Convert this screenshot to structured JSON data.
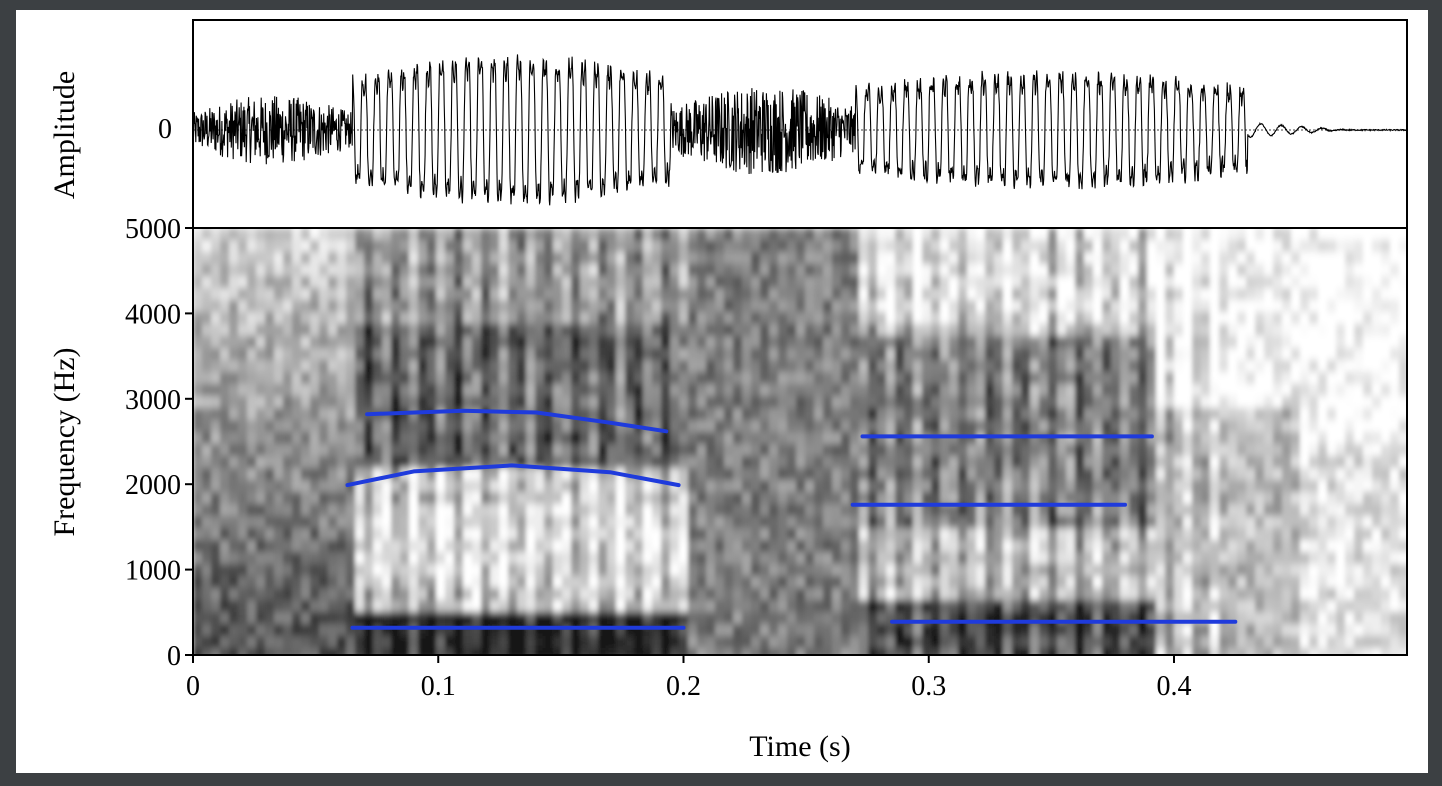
{
  "chart_data": [
    {
      "type": "line",
      "panel": "waveform",
      "ylabel": "Amplitude",
      "xlim": [
        0,
        0.495
      ],
      "y_ticks": [
        "0"
      ],
      "zero_line": true,
      "segments": [
        {
          "t0": 0.0,
          "t1": 0.065,
          "kind": "noise",
          "level": 0.35
        },
        {
          "t0": 0.065,
          "t1": 0.195,
          "kind": "voiced",
          "level": 0.9
        },
        {
          "t0": 0.195,
          "t1": 0.27,
          "kind": "noise",
          "level": 0.45
        },
        {
          "t0": 0.27,
          "t1": 0.43,
          "kind": "voiced",
          "level": 0.7
        },
        {
          "t0": 0.43,
          "t1": 0.495,
          "kind": "decay",
          "level": 0.12
        }
      ]
    },
    {
      "type": "heatmap",
      "panel": "spectrogram",
      "xlabel": "Time (s)",
      "ylabel": "Frequency (Hz)",
      "xlim": [
        0,
        0.495
      ],
      "ylim": [
        0,
        5000
      ],
      "x_ticks": [
        "0",
        "0.1",
        "0.2",
        "0.3",
        "0.4"
      ],
      "y_ticks": [
        "0",
        "1000",
        "2000",
        "3000",
        "4000",
        "5000"
      ],
      "colormap": "grayscale",
      "formant_color": "#1f3bdc",
      "formant_tracks": [
        {
          "x": [
            0.071,
            0.11,
            0.14,
            0.17,
            0.193
          ],
          "y": [
            2820,
            2860,
            2840,
            2720,
            2620
          ]
        },
        {
          "x": [
            0.063,
            0.09,
            0.13,
            0.17,
            0.198
          ],
          "y": [
            1990,
            2150,
            2220,
            2140,
            1990
          ]
        },
        {
          "x": [
            0.065,
            0.2
          ],
          "y": [
            320,
            320
          ]
        },
        {
          "x": [
            0.273,
            0.391
          ],
          "y": [
            2560,
            2560
          ]
        },
        {
          "x": [
            0.269,
            0.38
          ],
          "y": [
            1760,
            1760
          ]
        },
        {
          "x": [
            0.285,
            0.425
          ],
          "y": [
            390,
            390
          ]
        }
      ]
    }
  ]
}
